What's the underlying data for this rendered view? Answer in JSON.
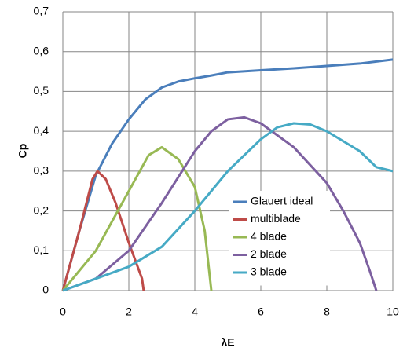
{
  "chart_data": {
    "type": "line",
    "xlabel": "λE",
    "ylabel": "Cp",
    "xlim": [
      0,
      10
    ],
    "xticks": [
      0,
      2,
      4,
      6,
      8,
      10
    ],
    "ylim": [
      0,
      0.7
    ],
    "yticks": [
      0,
      {
        "value": 0.1,
        "label": "0,1"
      },
      {
        "value": 0.2,
        "label": "0,2"
      },
      {
        "value": 0.3,
        "label": "0,3"
      },
      {
        "value": 0.4,
        "label": "0,4"
      },
      {
        "value": 0.5,
        "label": "0,5"
      },
      {
        "value": 0.6,
        "label": "0,6"
      },
      {
        "value": 0.7,
        "label": "0,7"
      }
    ],
    "grid": true,
    "series": [
      {
        "name": "Glauert ideal",
        "color": "#4a7ebb",
        "x": [
          0,
          0.5,
          1,
          1.5,
          2,
          2.5,
          3,
          3.5,
          4,
          4.5,
          5,
          6,
          7,
          8,
          9,
          10
        ],
        "values": [
          0,
          0.15,
          0.29,
          0.37,
          0.43,
          0.48,
          0.51,
          0.525,
          0.533,
          0.54,
          0.548,
          0.553,
          0.558,
          0.564,
          0.57,
          0.58
        ]
      },
      {
        "name": "multiblade",
        "color": "#be4b48",
        "x": [
          0,
          0.5,
          0.9,
          1.05,
          1.3,
          1.6,
          2,
          2.4,
          2.45
        ],
        "values": [
          0,
          0.15,
          0.28,
          0.3,
          0.28,
          0.22,
          0.12,
          0.03,
          0
        ]
      },
      {
        "name": "4 blade",
        "color": "#98b954",
        "x": [
          0,
          1,
          2,
          2.6,
          3,
          3.5,
          4,
          4.3,
          4.5
        ],
        "values": [
          0,
          0.1,
          0.25,
          0.34,
          0.36,
          0.33,
          0.26,
          0.15,
          0
        ]
      },
      {
        "name": "2 blade",
        "color": "#7d60a0",
        "x": [
          0,
          1,
          2,
          3,
          4,
          4.5,
          5,
          5.5,
          6,
          7,
          8,
          8.5,
          9,
          9.3,
          9.5
        ],
        "values": [
          0,
          0.03,
          0.1,
          0.22,
          0.35,
          0.4,
          0.43,
          0.435,
          0.42,
          0.36,
          0.27,
          0.2,
          0.12,
          0.05,
          0
        ]
      },
      {
        "name": "3 blade",
        "color": "#46aac5",
        "x": [
          0,
          1,
          2,
          3,
          4,
          5,
          6,
          6.5,
          7,
          7.5,
          8,
          9,
          9.5,
          10
        ],
        "values": [
          0,
          0.03,
          0.06,
          0.11,
          0.2,
          0.3,
          0.38,
          0.41,
          0.42,
          0.417,
          0.4,
          0.35,
          0.31,
          0.3
        ]
      }
    ]
  }
}
